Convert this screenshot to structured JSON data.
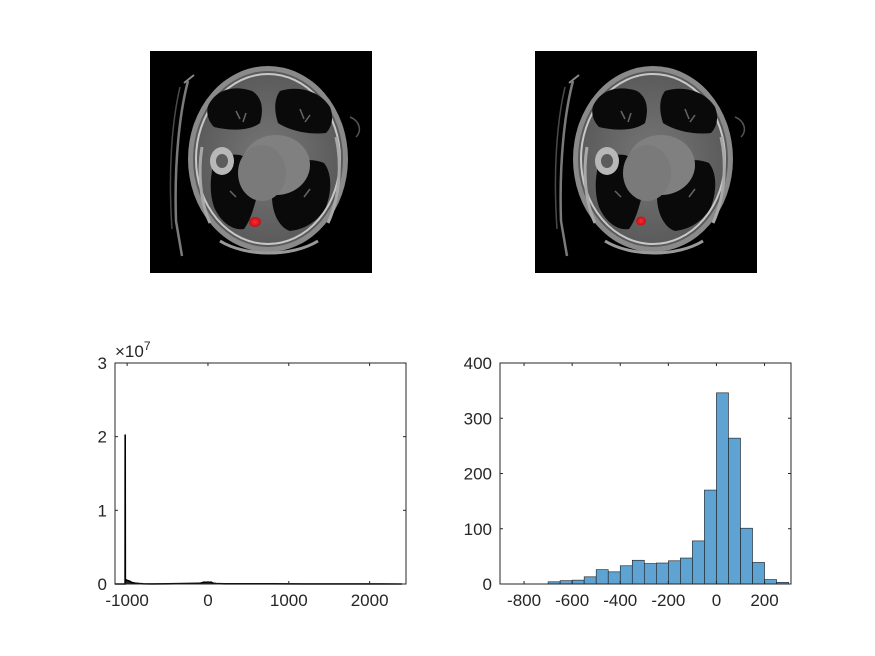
{
  "figure": {
    "background": "#ffffff",
    "axis_color": "#262626",
    "bar_color": "#5fa3d3",
    "bar_edge": "#1a1a1a",
    "overlay_color": "#e0141e"
  },
  "images": [
    {
      "description_icon": "ct-slice-with-lesion-overlay"
    },
    {
      "description_icon": "ct-slice-with-lesion-overlay"
    }
  ],
  "chart_data": [
    {
      "type": "area",
      "title": "",
      "xlabel": "",
      "ylabel": "",
      "xlim": [
        -1150,
        2450
      ],
      "ylim": [
        0,
        30000000
      ],
      "y_exponent_label": "×10",
      "y_exponent_power": "7",
      "xticks": [
        {
          "value": -1000,
          "label": "-1000"
        },
        {
          "value": 0,
          "label": "0"
        },
        {
          "value": 1000,
          "label": "1000"
        },
        {
          "value": 2000,
          "label": "2000"
        }
      ],
      "yticks": [
        {
          "value": 0,
          "label": "0"
        },
        {
          "value": 10000000,
          "label": "1"
        },
        {
          "value": 20000000,
          "label": "2"
        },
        {
          "value": 30000000,
          "label": "3"
        }
      ],
      "series": [
        {
          "x": [
            -1150,
            -1030,
            -1025,
            -1024,
            -1022,
            -1018,
            -1000,
            -980,
            -960,
            -940,
            -900,
            -850,
            -800,
            -700,
            -500,
            -300,
            -100,
            -50,
            0,
            40,
            60,
            100,
            200,
            400,
            800,
            1200,
            1600,
            2000,
            2400
          ],
          "values": [
            0,
            0,
            0,
            20300000,
            200000,
            600000,
            500000,
            420000,
            320000,
            200000,
            120000,
            60000,
            30000,
            15000,
            30000,
            60000,
            90000,
            250000,
            220000,
            240000,
            120000,
            60000,
            30000,
            25000,
            20000,
            15000,
            10000,
            5000,
            2000
          ]
        }
      ]
    },
    {
      "type": "bar",
      "title": "",
      "xlabel": "",
      "ylabel": "",
      "xlim": [
        -900,
        310
      ],
      "ylim": [
        0,
        400
      ],
      "bin_width": 50,
      "xticks": [
        {
          "value": -800,
          "label": "-800"
        },
        {
          "value": -600,
          "label": "-600"
        },
        {
          "value": -400,
          "label": "-400"
        },
        {
          "value": -200,
          "label": "-200"
        },
        {
          "value": 0,
          "label": "0"
        },
        {
          "value": 200,
          "label": "200"
        }
      ],
      "yticks": [
        {
          "value": 0,
          "label": "0"
        },
        {
          "value": 100,
          "label": "100"
        },
        {
          "value": 200,
          "label": "200"
        },
        {
          "value": 300,
          "label": "300"
        },
        {
          "value": 400,
          "label": "400"
        }
      ],
      "bin_edges": [
        -700,
        -650,
        -600,
        -550,
        -500,
        -450,
        -400,
        -350,
        -300,
        -250,
        -200,
        -150,
        -100,
        -50,
        0,
        50,
        100,
        150,
        200,
        250,
        300
      ],
      "values": [
        4,
        6,
        7,
        13,
        26,
        22,
        33,
        43,
        37,
        38,
        42,
        47,
        78,
        170,
        346,
        264,
        101,
        39,
        8,
        3
      ]
    }
  ]
}
